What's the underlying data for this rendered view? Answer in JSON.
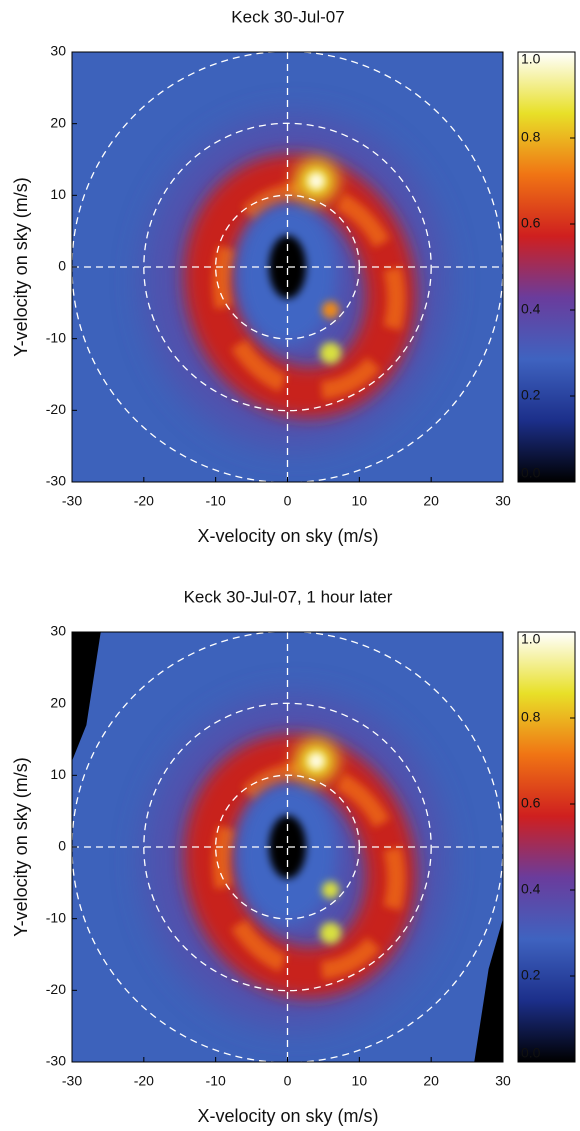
{
  "chart_data": [
    {
      "type": "heatmap",
      "title": "Keck 30-Jul-07",
      "xlabel": "X-velocity on sky (m/s)",
      "ylabel": "Y-velocity on sky (m/s)",
      "xlim": [
        -30,
        30
      ],
      "ylim": [
        -30,
        30
      ],
      "xticks": [
        -30,
        -20,
        -10,
        0,
        10,
        20,
        30
      ],
      "yticks": [
        -30,
        -20,
        -10,
        0,
        10,
        20,
        30
      ],
      "rings": [
        10,
        20,
        30
      ],
      "colorbar": {
        "lim": [
          0,
          1
        ],
        "ticks": [
          {
            "value": 0,
            "label": "0.0"
          },
          0.2,
          0.4,
          0.6,
          0.8,
          {
            "value": 1,
            "label": "1.0"
          }
        ],
        "colors": [
          "#000000",
          "#1c2f8a",
          "#3f63c0",
          "#6a3c9c",
          "#cf1f1f",
          "#f07414",
          "#e8e028",
          "#ffffff"
        ]
      }
    },
    {
      "type": "heatmap",
      "title": "Keck 30-Jul-07, 1 hour later",
      "xlabel": "X-velocity on sky (m/s)",
      "ylabel": "Y-velocity on sky (m/s)",
      "xlim": [
        -30,
        30
      ],
      "ylim": [
        -30,
        30
      ],
      "xticks": [
        -30,
        -20,
        -10,
        0,
        10,
        20,
        30
      ],
      "yticks": [
        -30,
        -20,
        -10,
        0,
        10,
        20,
        30
      ],
      "rings": [
        10,
        20,
        30
      ],
      "colorbar": {
        "lim": [
          0,
          1
        ],
        "ticks": [
          {
            "value": 0,
            "label": "0.0"
          },
          0.2,
          0.4,
          0.6,
          0.8,
          {
            "value": 1,
            "label": "1.0"
          }
        ],
        "colors": [
          "#000000",
          "#1c2f8a",
          "#3f63c0",
          "#6a3c9c",
          "#cf1f1f",
          "#f07414",
          "#e8e028",
          "#ffffff"
        ]
      }
    }
  ]
}
